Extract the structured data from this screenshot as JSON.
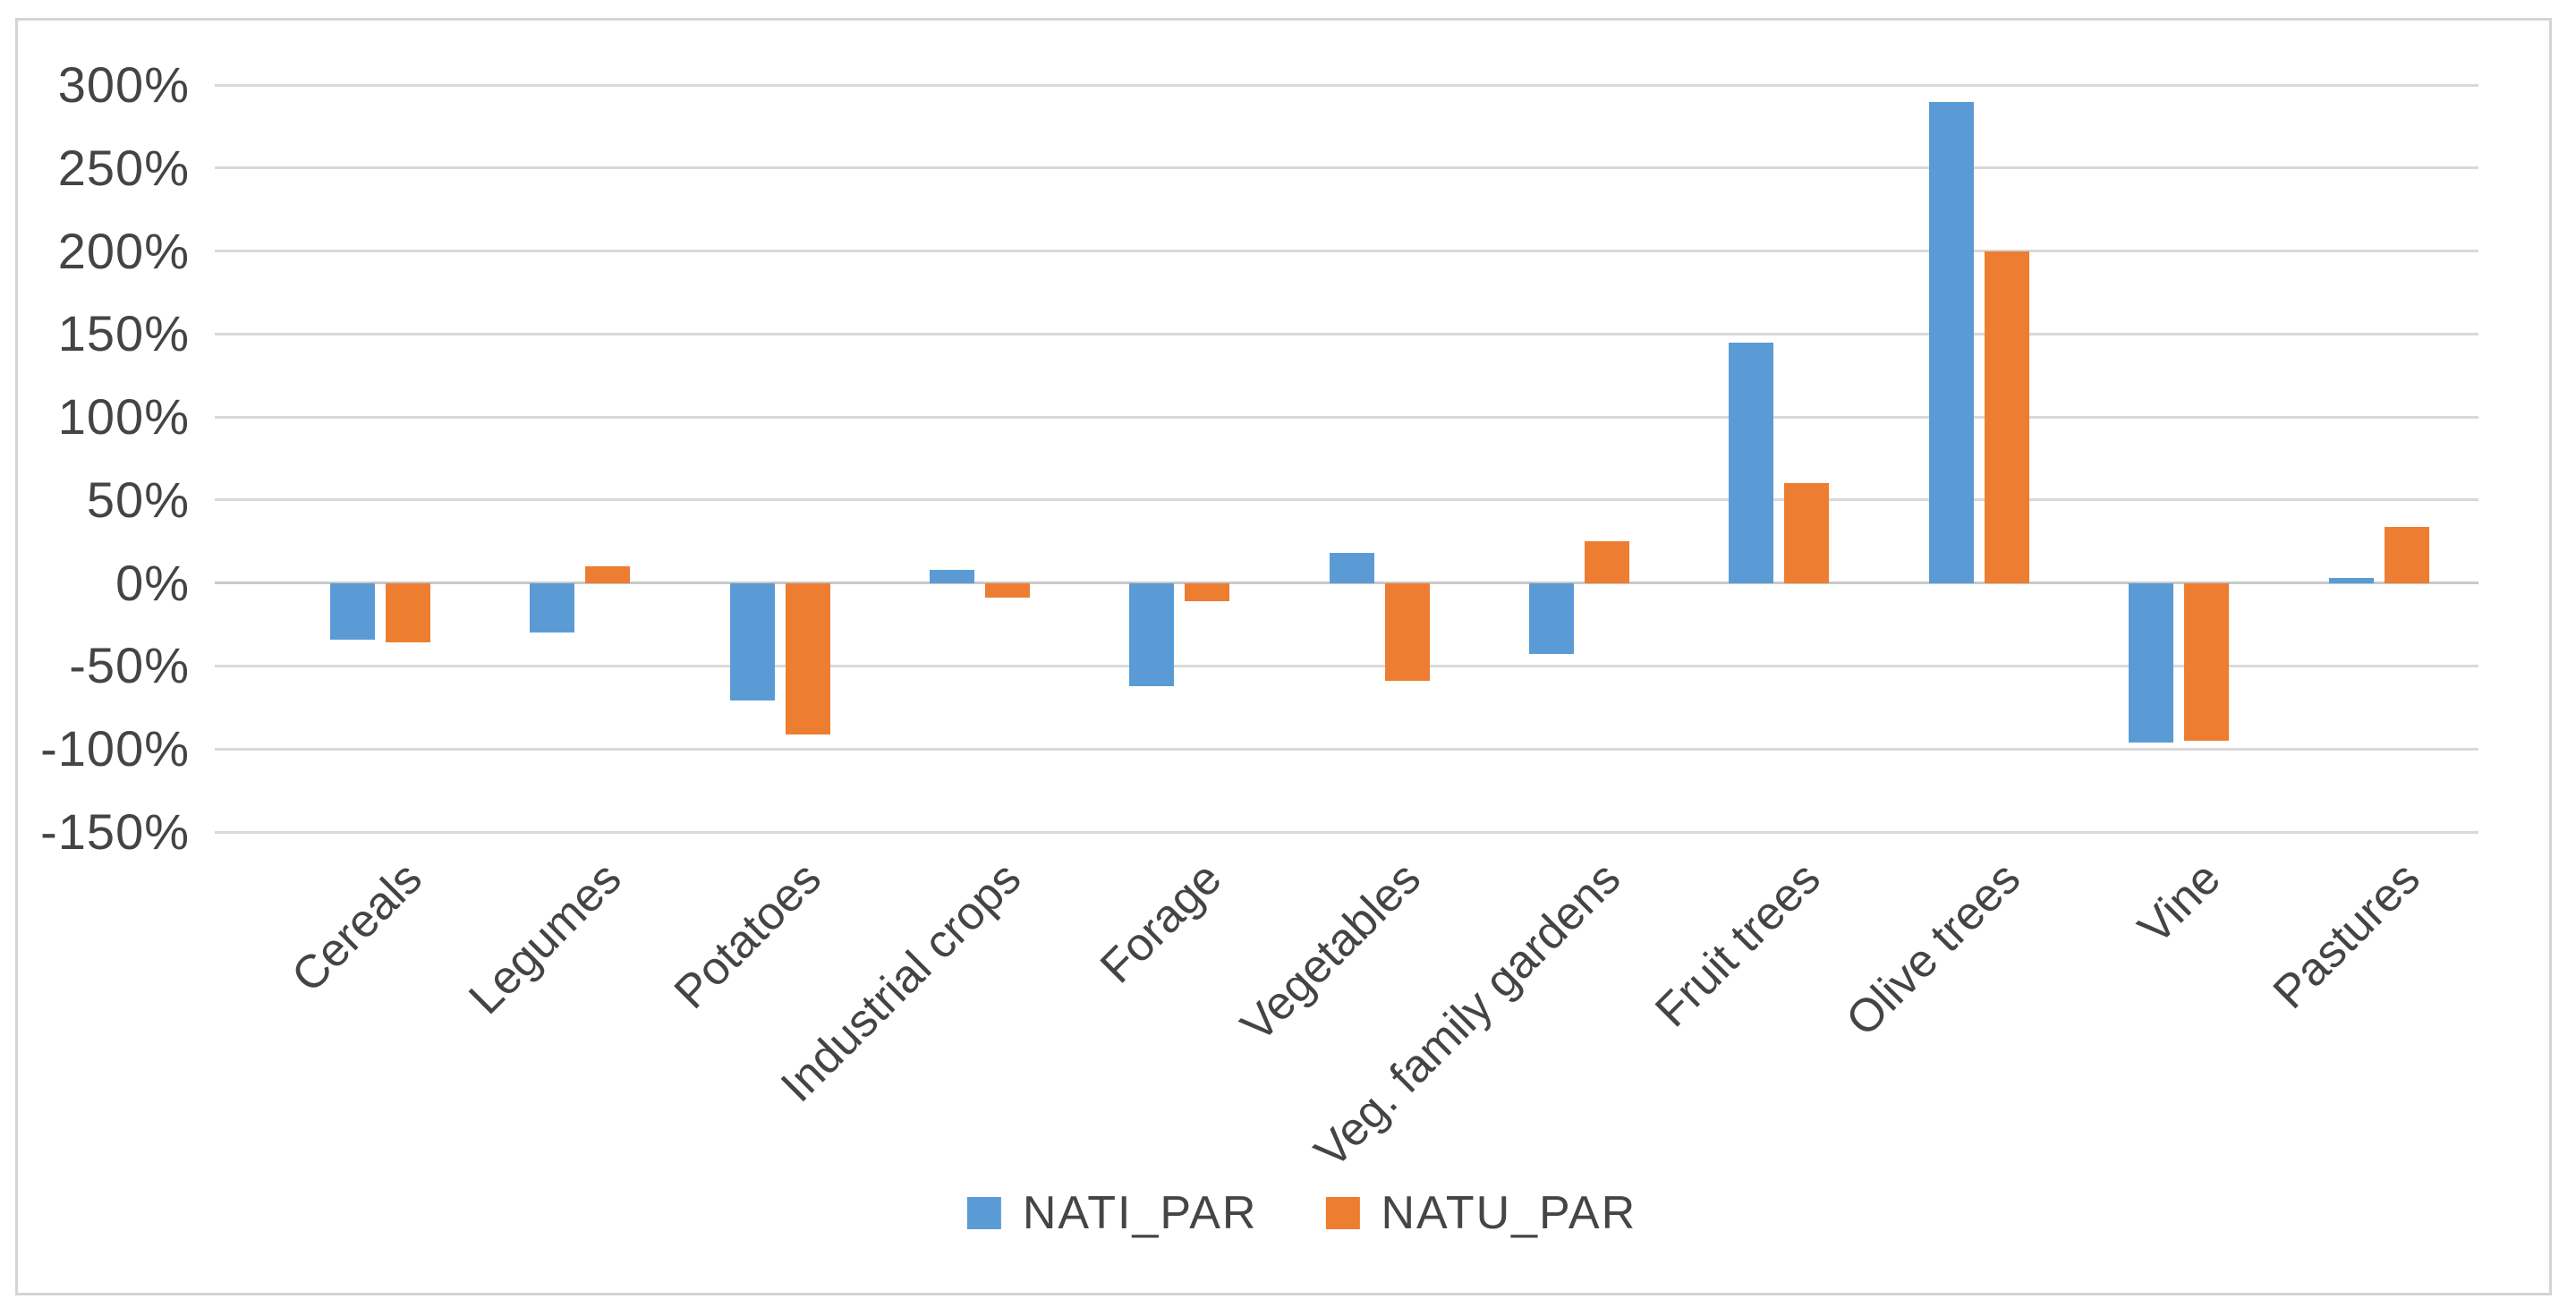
{
  "chart_data": {
    "type": "bar",
    "title": "",
    "categories": [
      "Cereals",
      "Legumes",
      "Potatoes",
      "Industrial crops",
      "Forage",
      "Vegetables",
      "Veg. family gardens",
      "Fruit trees",
      "Olive trees",
      "Vine",
      "Pastures"
    ],
    "series": [
      {
        "name": "NATI_PAR",
        "color": "#5B9BD5",
        "values": [
          -34,
          -30,
          -71,
          8,
          -62,
          18,
          -43,
          145,
          290,
          -96,
          3
        ]
      },
      {
        "name": "NATU_PAR",
        "color": "#ED7D31",
        "values": [
          -36,
          10,
          -91,
          -9,
          -11,
          -59,
          25,
          60,
          200,
          -95,
          34
        ]
      }
    ],
    "xlabel": "",
    "ylabel": "",
    "ylim": [
      -150,
      300
    ],
    "yticks": [
      300,
      250,
      200,
      150,
      100,
      50,
      0,
      -50,
      -100,
      -150
    ],
    "ytick_suffix": "%",
    "grid": "horizontal",
    "gridline_color": "#d9d9d9",
    "zero_line_color": "#c9c9c9",
    "tick_label_color": "#444444",
    "frame_color": "#d4d4d4",
    "background_color": "#ffffff",
    "legend_position": "bottom",
    "legend_entries": [
      "NATI_PAR",
      "NATU_PAR"
    ]
  }
}
